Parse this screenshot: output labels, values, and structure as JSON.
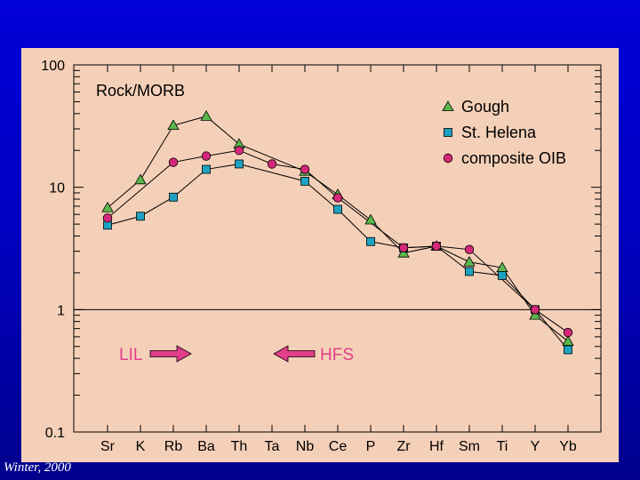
{
  "credit": "Winter, 2000",
  "chart_data": {
    "type": "line",
    "ylabel": "Rock/MORB",
    "xlabel": "",
    "yscale": "log",
    "ylim": [
      0.1,
      100
    ],
    "yticks": [
      {
        "value": 100,
        "label": "100"
      },
      {
        "value": 10,
        "label": "10"
      },
      {
        "value": 1,
        "label": "1"
      },
      {
        "value": 0.1,
        "label": "0.1"
      }
    ],
    "reference_line": 1,
    "categories": [
      "Sr",
      "K",
      "Rb",
      "Ba",
      "Th",
      "Ta",
      "Nb",
      "Ce",
      "P",
      "Zr",
      "Hf",
      "Sm",
      "Ti",
      "Y",
      "Yb"
    ],
    "legend_position": "top-right",
    "series": [
      {
        "name": "Gough",
        "marker": "triangle",
        "color": "#5cb84e",
        "values": [
          6.8,
          11.5,
          32,
          38,
          22.5,
          null,
          13.5,
          8.7,
          5.4,
          2.9,
          3.3,
          2.45,
          2.2,
          0.9,
          0.55
        ]
      },
      {
        "name": "St. Helena",
        "marker": "square",
        "color": "#1ea2c2",
        "values": [
          4.9,
          5.8,
          8.3,
          14,
          15.5,
          null,
          11.2,
          6.6,
          3.6,
          3.2,
          3.3,
          2.05,
          1.9,
          1.0,
          0.47
        ]
      },
      {
        "name": "composite OIB",
        "marker": "circle",
        "color": "#d6287a",
        "values": [
          5.6,
          null,
          16,
          18,
          20,
          15.5,
          14,
          8.2,
          null,
          3.2,
          3.3,
          3.1,
          null,
          1.0,
          0.65
        ]
      }
    ],
    "annotations": [
      {
        "text": "LIL",
        "direction": "right",
        "color": "#e23e8a"
      },
      {
        "text": "HFS",
        "direction": "left",
        "color": "#e23e8a"
      }
    ]
  }
}
